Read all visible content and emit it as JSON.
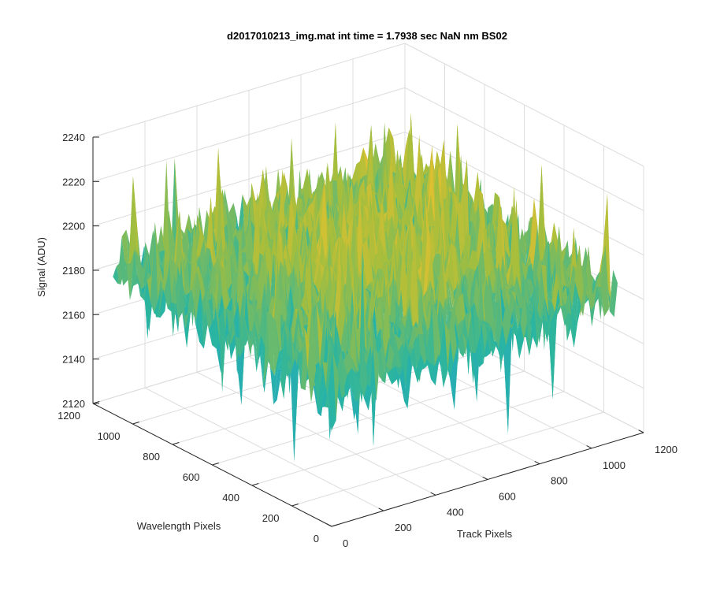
{
  "chart_data": {
    "type": "surface",
    "title": "d2017010213_img.mat int time = 1.7938 sec  NaN nm BS02",
    "xlabel": "Track Pixels",
    "ylabel": "Wavelength Pixels",
    "zlabel": "Signal (ADU)",
    "xlim": [
      0,
      1200
    ],
    "ylim": [
      0,
      1200
    ],
    "zlim": [
      2120,
      2240
    ],
    "x_ticks": [
      "0",
      "200",
      "400",
      "600",
      "800",
      "1000",
      "1200"
    ],
    "y_ticks": [
      "0",
      "200",
      "400",
      "600",
      "800",
      "1000",
      "1200"
    ],
    "z_ticks": [
      "2120",
      "2140",
      "2160",
      "2180",
      "2200",
      "2220",
      "2240"
    ],
    "grid": true,
    "colormap": "parula",
    "data_extent": {
      "x": [
        0,
        1100
      ],
      "y": [
        0,
        1100
      ]
    },
    "z_range_observed": [
      2125,
      2233
    ],
    "z_mean": 2185,
    "colors": {
      "low": "#1d9fd8",
      "mid": "#2ab5a0",
      "high": "#f2c12e",
      "axis": "#262626",
      "grid": "#dcdcdc"
    }
  }
}
